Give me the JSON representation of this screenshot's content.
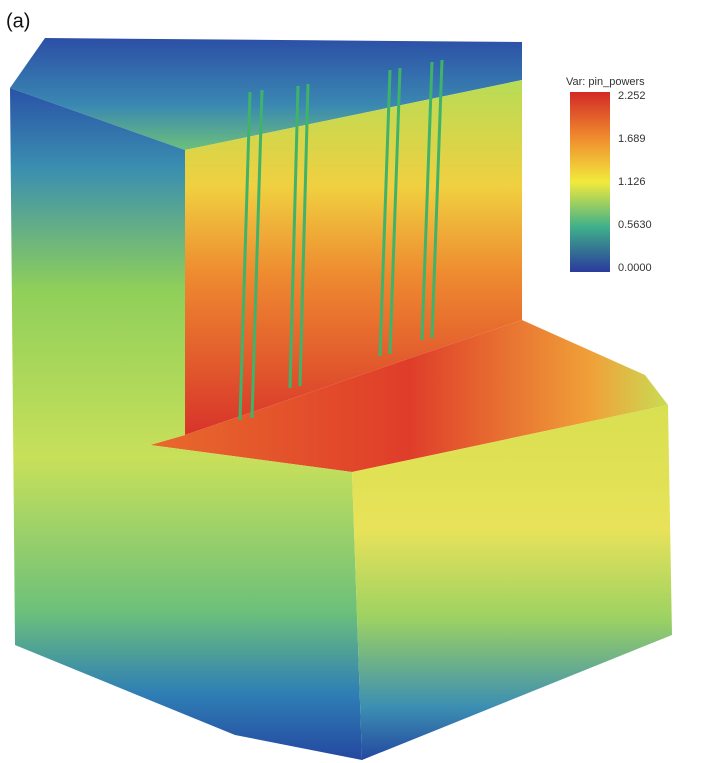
{
  "panel_label": "(a)",
  "colorbar": {
    "title": "Var: pin_powers",
    "tick_labels": [
      "2.252",
      "1.689",
      "1.126",
      "0.5630",
      "0.0000"
    ]
  }
}
